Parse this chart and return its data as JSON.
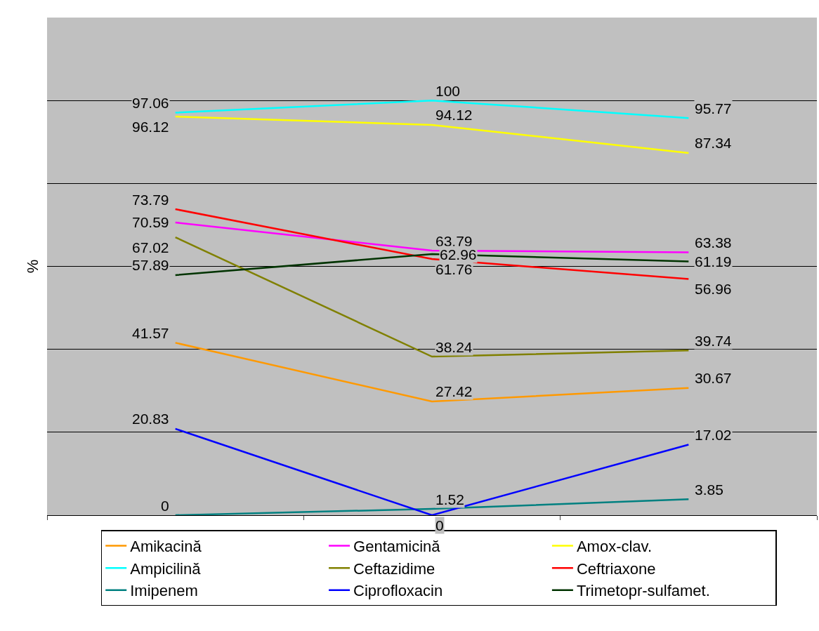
{
  "chart_data": {
    "type": "line",
    "ylabel": "%",
    "categories": [
      null,
      null,
      null
    ],
    "ylim": [
      0,
      120
    ],
    "yticks": [
      {
        "value": 0,
        "label": null
      },
      {
        "value": 20,
        "label": null
      },
      {
        "value": 40,
        "label": null
      },
      {
        "value": 60,
        "label": null
      },
      {
        "value": 80,
        "label": null
      },
      {
        "value": 100,
        "label": null
      },
      {
        "value": 120,
        "label": null
      }
    ],
    "grid": "y",
    "legend": "bottom",
    "marker": "none",
    "line_style": "solid",
    "data_labels": true,
    "series": [
      {
        "name": "Amikacină",
        "color": "#ff9900",
        "values": [
          41.57,
          27.42,
          30.67
        ]
      },
      {
        "name": "Gentamicină",
        "color": "#ff00ff",
        "values": [
          70.59,
          63.79,
          63.38
        ]
      },
      {
        "name": "Amox-clav.",
        "color": "#ffff00",
        "values": [
          96.12,
          94.12,
          87.34
        ]
      },
      {
        "name": "Ampicilină",
        "color": "#00ffff",
        "values": [
          97.06,
          100,
          95.77
        ]
      },
      {
        "name": "Ceftazidime",
        "color": "#808000",
        "values": [
          67.02,
          38.24,
          39.74
        ]
      },
      {
        "name": "Ceftriaxone",
        "color": "#ff0000",
        "values": [
          73.79,
          61.76,
          56.96
        ]
      },
      {
        "name": "Imipenem",
        "color": "#008080",
        "values": [
          0,
          1.52,
          3.85
        ]
      },
      {
        "name": "Ciprofloxacin",
        "color": "#0000ff",
        "values": [
          20.83,
          0,
          17.02
        ]
      },
      {
        "name": "Trimetopr-sulfamet.",
        "color": "#003300",
        "values": [
          57.89,
          62.96,
          61.19
        ]
      }
    ]
  }
}
